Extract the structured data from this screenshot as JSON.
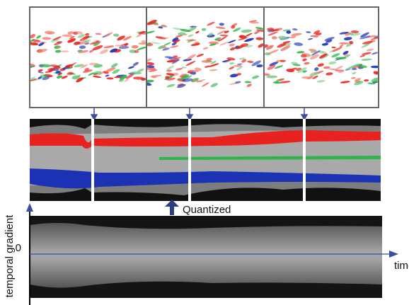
{
  "labels": {
    "quantized": "Quantized",
    "y_axis": "temporal gradient",
    "zero": "0",
    "x_axis": "time"
  }
}
